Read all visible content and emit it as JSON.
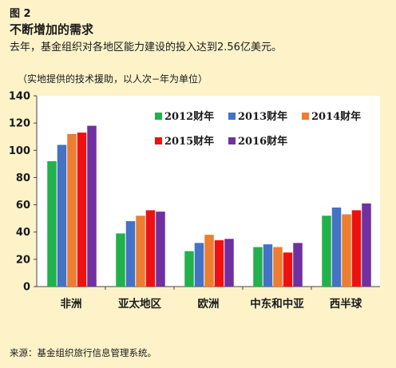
{
  "figure": {
    "label": "图 2",
    "headline": "不断增加的需求",
    "subhead": "去年，基金组织对各地区能力建设的投入达到2.56亿美元。",
    "unit_note": "（实地提供的技术援助，以人次−年为单位）",
    "source": "来源：基金组织旅行信息管理系统。"
  },
  "colors": {
    "background": "#fdf2c8",
    "plot_background": "#ffffff",
    "axis": "#444444"
  },
  "chart_data": {
    "type": "bar",
    "categories": [
      "非洲",
      "亚太地区",
      "欧洲",
      "中东和中亚",
      "西半球"
    ],
    "series": [
      {
        "name": "2012财年",
        "color": "#22b14c",
        "values": [
          92,
          39,
          26,
          29,
          52
        ]
      },
      {
        "name": "2013财年",
        "color": "#4472c4",
        "values": [
          104,
          48,
          32,
          31,
          58
        ]
      },
      {
        "name": "2014财年",
        "color": "#ed7d31",
        "values": [
          112,
          52,
          38,
          29,
          53
        ]
      },
      {
        "name": "2015财年",
        "color": "#ee1111",
        "values": [
          113,
          56,
          34,
          25,
          56
        ]
      },
      {
        "name": "2016财年",
        "color": "#7030a0",
        "values": [
          118,
          55,
          35,
          32,
          61
        ]
      }
    ],
    "ylim": [
      0,
      140
    ],
    "yticks": [
      0,
      20,
      40,
      60,
      80,
      100,
      120,
      140
    ],
    "grid": false,
    "legend_position": "top-right"
  }
}
